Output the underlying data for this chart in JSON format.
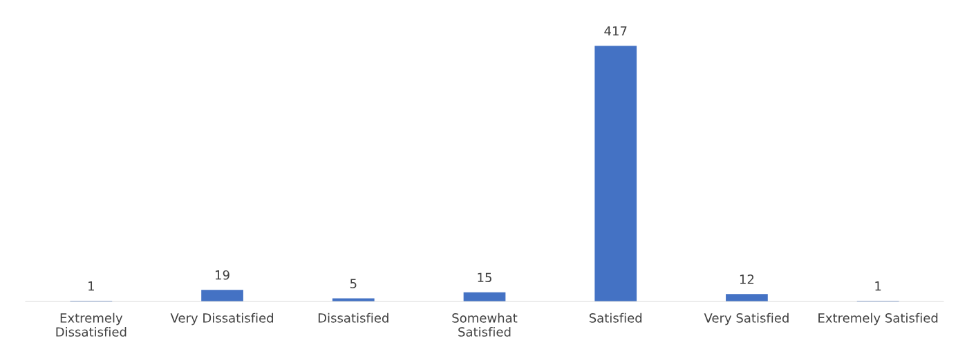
{
  "chart_data": {
    "type": "bar",
    "categories": [
      "Extremely\nDissatisfied",
      "Very Dissatisfied",
      "Dissatisfied",
      "Somewhat\nSatisfied",
      "Satisfied",
      "Very Satisfied",
      "Extremely Satisfied"
    ],
    "values": [
      1,
      19,
      5,
      15,
      417,
      12,
      1
    ],
    "color": "#4472c4",
    "data_labels": true,
    "grid": false,
    "legend": false
  }
}
